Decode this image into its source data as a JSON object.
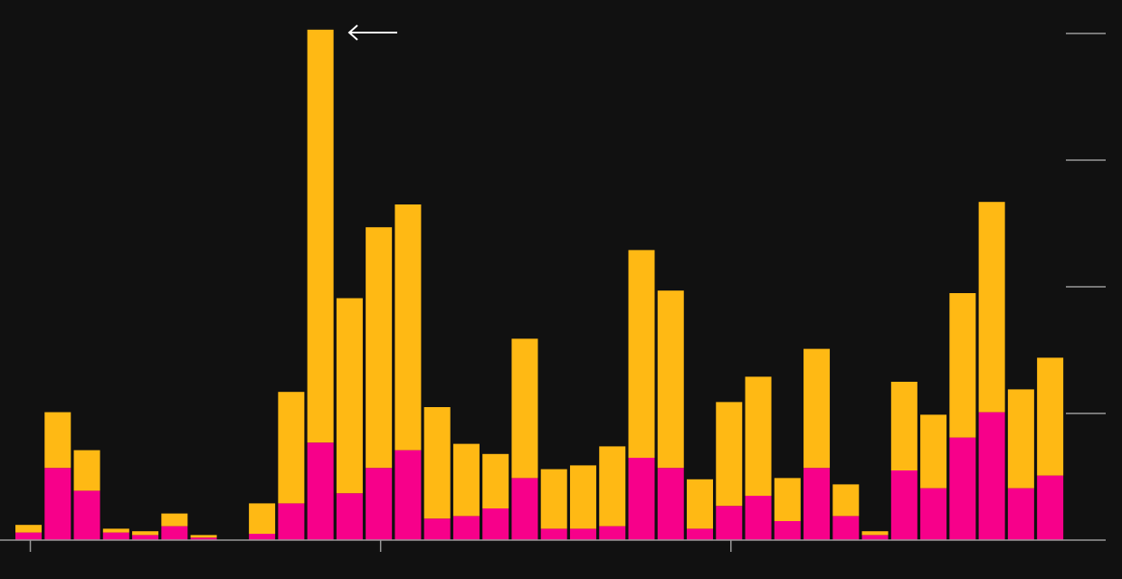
{
  "chart_data": {
    "type": "stacked-bar",
    "categories": [
      null,
      null,
      null,
      null,
      null,
      null,
      null,
      null,
      null,
      null,
      null,
      null,
      null,
      null,
      null,
      null,
      null,
      null,
      null,
      null,
      null,
      null,
      null,
      null,
      null,
      null,
      null,
      null,
      null,
      null,
      null,
      null,
      null,
      null,
      null,
      null
    ],
    "series": [
      {
        "color": "#f7008a",
        "values": [
          0.06,
          0.57,
          0.39,
          0.06,
          0.04,
          0.11,
          0.02,
          0,
          0.05,
          0.29,
          0.77,
          0.37,
          0.57,
          0.71,
          0.17,
          0.19,
          0.25,
          0.49,
          0.09,
          0.09,
          0.11,
          0.65,
          0.57,
          0.09,
          0.27,
          0.35,
          0.15,
          0.57,
          0.19,
          0.04,
          0.55,
          0.41,
          0.81,
          1.01,
          0.41,
          0.51
        ]
      },
      {
        "color": "#ffb914",
        "values": [
          0.06,
          0.44,
          0.32,
          0.03,
          0.03,
          0.1,
          0.02,
          0,
          0.24,
          0.88,
          3.26,
          1.54,
          1.9,
          1.94,
          0.88,
          0.57,
          0.43,
          1.1,
          0.47,
          0.5,
          0.63,
          1.64,
          1.4,
          0.39,
          0.82,
          0.94,
          0.34,
          0.94,
          0.25,
          0.03,
          0.7,
          0.58,
          1.14,
          1.66,
          0.78,
          0.93
        ]
      }
    ],
    "ylim": [
      0,
      4
    ],
    "yticks": [
      0,
      1,
      2,
      3,
      4
    ],
    "grid": true,
    "xticks": [
      0,
      12,
      24
    ]
  }
}
